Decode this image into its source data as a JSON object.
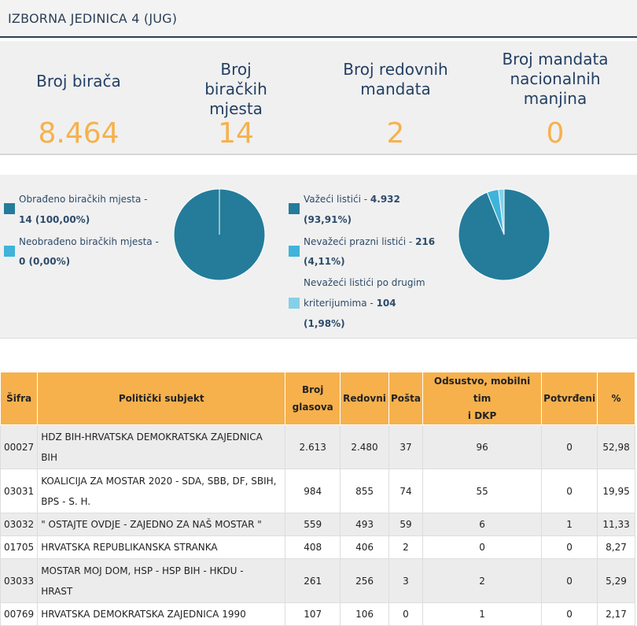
{
  "title": "IZBORNA JEDINICA 4 (JUG)",
  "stats": [
    {
      "label": "Broj birača",
      "value": "8.464"
    },
    {
      "label": "Broj biračkih mjesta",
      "value": "14"
    },
    {
      "label": "Broj redovnih mandata",
      "value": "2"
    },
    {
      "label": "Broj mandata nacionalnih manjina",
      "value": "0"
    }
  ],
  "left_chart": {
    "legend": [
      {
        "label": "Obrađeno biračkih mjesta -",
        "value": "14 (100,00%)",
        "color": "#247c9a"
      },
      {
        "label": "Neobrađeno biračkih mjesta -",
        "value": "0 (0,00%)",
        "color": "#3fb3d9"
      }
    ],
    "slices": [
      100.0,
      0.0
    ]
  },
  "right_chart": {
    "legend": [
      {
        "label": "Važeći listići -",
        "value": "4.932",
        "pct": "(93,91%)",
        "color": "#247c9a"
      },
      {
        "label": "Nevažeći prazni listići -",
        "value": "216",
        "pct": "(4,11%)",
        "color": "#3fb3d9"
      },
      {
        "label1": "Nevažeći listići po drugim",
        "label2": "kriterijumima -",
        "value": "104",
        "pct": "(1,98%)",
        "color": "#85d0e8"
      }
    ],
    "slices": [
      93.91,
      4.11,
      1.98
    ]
  },
  "table": {
    "headers": {
      "sifra": "Šifra",
      "subjekt": "Politički subjekt",
      "broj1": "Broj",
      "broj2": "glasova",
      "redovni": "Redovni",
      "posta": "Pošta",
      "ods1": "Odsustvo, mobilni tim",
      "ods2": "i DKP",
      "potvrdeni": "Potvrđeni",
      "pct": "%"
    },
    "rows": [
      {
        "sifra": "00027",
        "subjekt1": "HDZ BIH-HRVATSKA DEMOKRATSKA ZAJEDNICA",
        "subjekt2": "BIH",
        "broj": "2.613",
        "redovni": "2.480",
        "posta": "37",
        "ods": "96",
        "potvrdeni": "0",
        "pct": "52,98"
      },
      {
        "sifra": "03031",
        "subjekt1": "KOALICIJA ZA MOSTAR 2020 - SDA, SBB, DF, SBIH,",
        "subjekt2": "BPS - S. H.",
        "broj": "984",
        "redovni": "855",
        "posta": "74",
        "ods": "55",
        "potvrdeni": "0",
        "pct": "19,95"
      },
      {
        "sifra": "03032",
        "subjekt1": "\" OSTAJTE OVDJE - ZAJEDNO ZA NAŠ MOSTAR \"",
        "subjekt2": "",
        "broj": "559",
        "redovni": "493",
        "posta": "59",
        "ods": "6",
        "potvrdeni": "1",
        "pct": "11,33"
      },
      {
        "sifra": "01705",
        "subjekt1": "HRVATSKA REPUBLIKANSKA STRANKA",
        "subjekt2": "",
        "broj": "408",
        "redovni": "406",
        "posta": "2",
        "ods": "0",
        "potvrdeni": "0",
        "pct": "8,27"
      },
      {
        "sifra": "03033",
        "subjekt1": "MOSTAR MOJ DOM, HSP - HSP BIH - HKDU -",
        "subjekt2": "HRAST",
        "broj": "261",
        "redovni": "256",
        "posta": "3",
        "ods": "2",
        "potvrdeni": "0",
        "pct": "5,29"
      },
      {
        "sifra": "00769",
        "subjekt1": "HRVATSKA DEMOKRATSKA ZAJEDNICA 1990",
        "subjekt2": "",
        "broj": "107",
        "redovni": "106",
        "posta": "0",
        "ods": "1",
        "potvrdeni": "0",
        "pct": "2,17"
      }
    ]
  }
}
